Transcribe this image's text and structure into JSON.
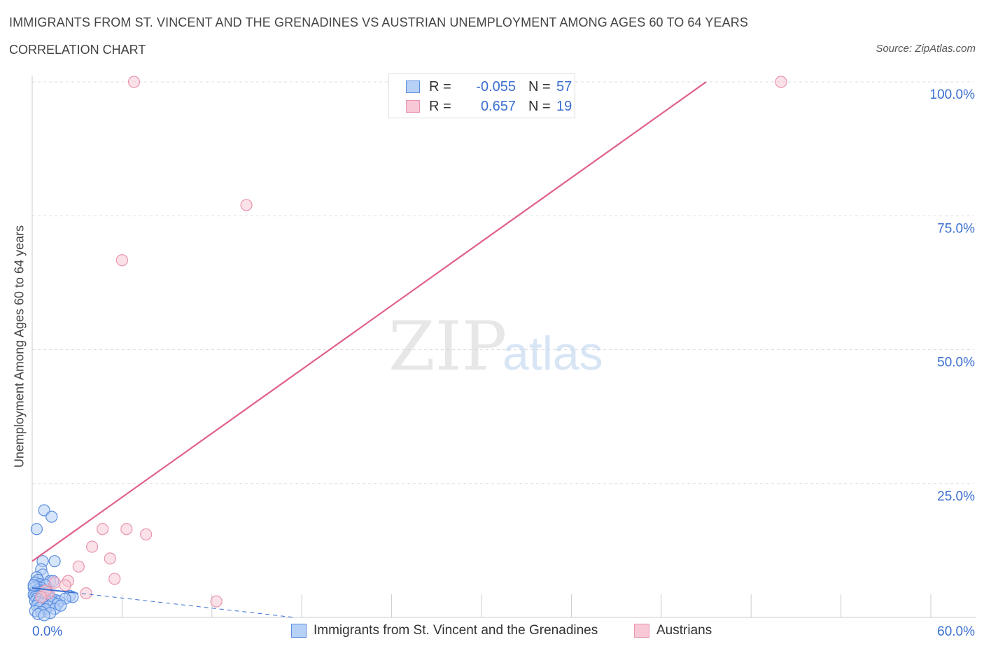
{
  "header": {
    "title": "IMMIGRANTS FROM ST. VINCENT AND THE GRENADINES VS AUSTRIAN UNEMPLOYMENT AMONG AGES 60 TO 64 YEARS",
    "subtitle": "CORRELATION CHART",
    "source": "Source: ZipAtlas.com"
  },
  "watermark": {
    "zip": "ZIP",
    "atlas": "atlas"
  },
  "legend": {
    "r_label": "R =",
    "n_label": "N =",
    "blue": {
      "r": "-0.055",
      "n": "57"
    },
    "pink": {
      "r": "0.657",
      "n": "19"
    }
  },
  "colors": {
    "blue_fill": "#b7d0f5",
    "blue_stroke": "#5b8ee0",
    "blue_line": "#3a6fd0",
    "pink_fill": "#f8c8d6",
    "pink_stroke": "#e895ad",
    "pink_line": "#e0608a",
    "axis_text": "#3a6fd0",
    "grid": "#dddddd"
  },
  "chart_data": {
    "type": "scatter",
    "title": "IMMIGRANTS FROM ST. VINCENT AND THE GRENADINES VS AUSTRIAN UNEMPLOYMENT AMONG AGES 60 TO 64 YEARS",
    "xlabel": "",
    "ylabel": "Unemployment Among Ages 60 to 64 years",
    "xlim": [
      0,
      60
    ],
    "ylim": [
      0,
      100
    ],
    "x_tick_labels": [
      "0.0%",
      "60.0%"
    ],
    "y_ticks": [
      25,
      50,
      75,
      100
    ],
    "y_tick_labels": [
      "25.0%",
      "50.0%",
      "75.0%",
      "100.0%"
    ],
    "series": [
      {
        "name": "Immigrants from St. Vincent and the Grenadines",
        "color": "blue",
        "points": [
          [
            0.3,
            16.5
          ],
          [
            0.8,
            20.0
          ],
          [
            1.3,
            18.8
          ],
          [
            0.7,
            10.5
          ],
          [
            1.5,
            10.5
          ],
          [
            0.6,
            9.0
          ],
          [
            0.7,
            8.0
          ],
          [
            0.3,
            7.5
          ],
          [
            0.4,
            7.0
          ],
          [
            1.2,
            6.8
          ],
          [
            1.4,
            6.8
          ],
          [
            0.2,
            6.5
          ],
          [
            0.5,
            6.2
          ],
          [
            0.9,
            6.0
          ],
          [
            0.3,
            5.8
          ],
          [
            0.6,
            5.5
          ],
          [
            0.1,
            5.5
          ],
          [
            0.4,
            5.2
          ],
          [
            0.8,
            5.0
          ],
          [
            0.2,
            4.8
          ],
          [
            0.5,
            4.8
          ],
          [
            1.0,
            4.6
          ],
          [
            0.3,
            4.5
          ],
          [
            0.7,
            4.3
          ],
          [
            0.1,
            4.2
          ],
          [
            0.4,
            4.0
          ],
          [
            1.1,
            4.0
          ],
          [
            0.2,
            3.8
          ],
          [
            0.6,
            3.8
          ],
          [
            0.9,
            3.6
          ],
          [
            0.3,
            3.5
          ],
          [
            1.3,
            3.5
          ],
          [
            0.5,
            3.3
          ],
          [
            0.8,
            3.2
          ],
          [
            1.6,
            3.2
          ],
          [
            0.2,
            3.0
          ],
          [
            1.0,
            3.0
          ],
          [
            1.8,
            3.0
          ],
          [
            0.4,
            2.8
          ],
          [
            1.4,
            2.8
          ],
          [
            0.7,
            2.6
          ],
          [
            2.5,
            4.0
          ],
          [
            2.7,
            3.8
          ],
          [
            2.2,
            3.5
          ],
          [
            1.7,
            2.5
          ],
          [
            0.3,
            2.2
          ],
          [
            1.1,
            2.0
          ],
          [
            0.5,
            1.8
          ],
          [
            1.5,
            1.6
          ],
          [
            0.9,
            1.5
          ],
          [
            0.2,
            1.2
          ],
          [
            0.6,
            1.0
          ],
          [
            1.2,
            0.8
          ],
          [
            0.4,
            0.6
          ],
          [
            0.8,
            0.4
          ],
          [
            1.9,
            2.2
          ],
          [
            0.1,
            6.0
          ]
        ],
        "trend": {
          "x": [
            0,
            17.5
          ],
          "y": [
            5.5,
            0
          ]
        }
      },
      {
        "name": "Austrians",
        "color": "pink",
        "points": [
          [
            6.8,
            100.0
          ],
          [
            50.0,
            100.0
          ],
          [
            14.3,
            77.0
          ],
          [
            6.0,
            66.7
          ],
          [
            4.7,
            16.5
          ],
          [
            6.3,
            16.5
          ],
          [
            7.6,
            15.5
          ],
          [
            4.0,
            13.2
          ],
          [
            5.2,
            11.0
          ],
          [
            3.1,
            9.5
          ],
          [
            5.5,
            7.2
          ],
          [
            2.4,
            6.8
          ],
          [
            1.5,
            6.5
          ],
          [
            2.2,
            6.0
          ],
          [
            3.6,
            4.5
          ],
          [
            12.3,
            3.0
          ],
          [
            1.1,
            4.5
          ],
          [
            0.9,
            5.0
          ],
          [
            0.6,
            3.8
          ]
        ],
        "trend": {
          "x": [
            0,
            45
          ],
          "y": [
            10.5,
            100
          ]
        }
      }
    ]
  },
  "bottom_legend": {
    "blue_label": "Immigrants from St. Vincent and the Grenadines",
    "pink_label": "Austrians"
  }
}
